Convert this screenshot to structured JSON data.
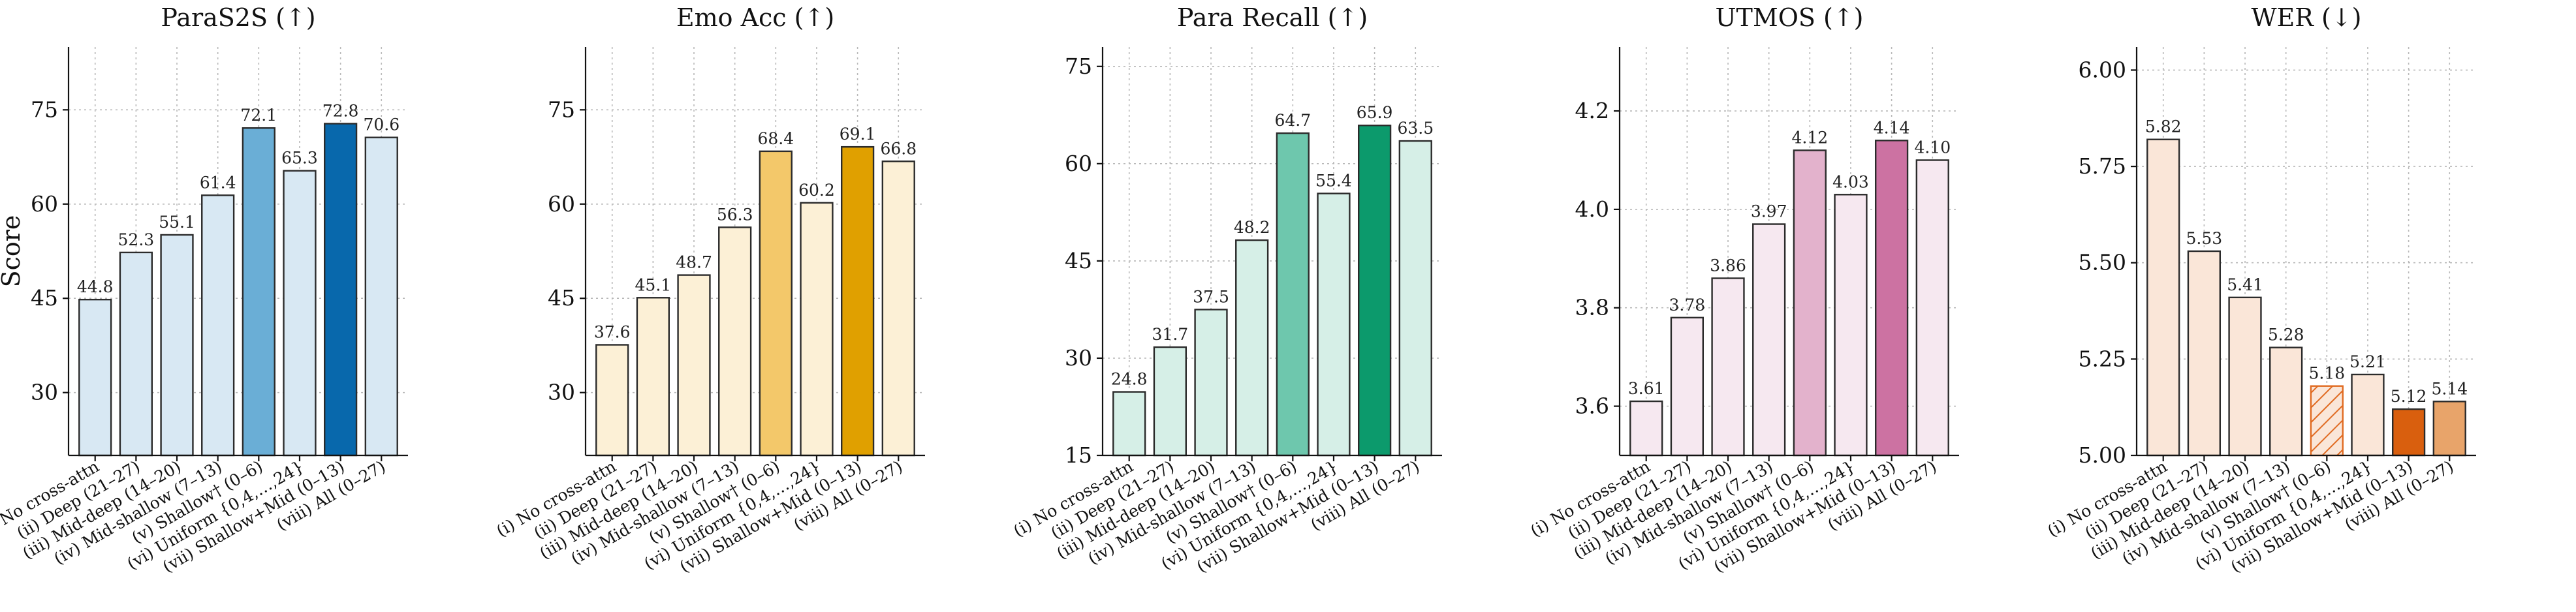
{
  "y_axis_label": "Score",
  "categories": [
    "(i) No cross-attn",
    "(ii) Deep (21–27)",
    "(iii) Mid-deep (14–20)",
    "(iv) Mid-shallow (7–13)",
    "(v) Shallow† (0–6)",
    "(vi) Uniform {0,4,…,24}",
    "(vii) Shallow+Mid (0–13)",
    "(viii) All (0–27)"
  ],
  "colors": {
    "blue_light": "#d8e8f3",
    "blue_mid": "#6aaed6",
    "blue_dark": "#0868ac",
    "gold_light": "#fcf0d6",
    "gold_mid": "#f3c86a",
    "gold_dark": "#e0a000",
    "green_light": "#d6efe7",
    "green_mid": "#6ec7ad",
    "green_dark": "#0c9a6c",
    "pink_light": "#f6e8f0",
    "pink_mid": "#e3b2cc",
    "pink_dark": "#cc72a2",
    "peach_light": "#fae6d8",
    "orange_dark": "#d95f0e",
    "orange_mid": "#e8a46a",
    "orange_hatch": "#e06a20"
  },
  "chart_data": [
    {
      "type": "bar",
      "title": "ParaS2S (↑)",
      "ylabel": "Score",
      "ylim": [
        20,
        85
      ],
      "yticks": [
        30,
        45,
        60,
        75
      ],
      "tick_labels": [
        "30",
        "45",
        "60",
        "75"
      ],
      "values": [
        44.8,
        52.3,
        55.1,
        61.4,
        72.1,
        65.3,
        72.8,
        70.6
      ],
      "value_labels": [
        "44.8",
        "52.3",
        "55.1",
        "61.4",
        "72.1",
        "65.3",
        "72.8",
        "70.6"
      ],
      "bar_colors": [
        "#d8e8f3",
        "#d8e8f3",
        "#d8e8f3",
        "#d8e8f3",
        "#6aaed6",
        "#d8e8f3",
        "#0868ac",
        "#d8e8f3"
      ],
      "hatched": [
        false,
        false,
        false,
        false,
        false,
        false,
        false,
        false
      ]
    },
    {
      "type": "bar",
      "title": "Emo Acc (↑)",
      "ylim": [
        20,
        85
      ],
      "yticks": [
        30,
        45,
        60,
        75
      ],
      "tick_labels": [
        "30",
        "45",
        "60",
        "75"
      ],
      "values": [
        37.6,
        45.1,
        48.7,
        56.3,
        68.4,
        60.2,
        69.1,
        66.8
      ],
      "value_labels": [
        "37.6",
        "45.1",
        "48.7",
        "56.3",
        "68.4",
        "60.2",
        "69.1",
        "66.8"
      ],
      "bar_colors": [
        "#fcf0d6",
        "#fcf0d6",
        "#fcf0d6",
        "#fcf0d6",
        "#f3c86a",
        "#fcf0d6",
        "#e0a000",
        "#fcf0d6"
      ],
      "hatched": [
        false,
        false,
        false,
        false,
        false,
        false,
        false,
        false
      ]
    },
    {
      "type": "bar",
      "title": "Para Recall (↑)",
      "ylim": [
        15,
        78
      ],
      "yticks": [
        15,
        30,
        45,
        60,
        75
      ],
      "tick_labels": [
        "15",
        "30",
        "45",
        "60",
        "75"
      ],
      "values": [
        24.8,
        31.7,
        37.5,
        48.2,
        64.7,
        55.4,
        65.9,
        63.5
      ],
      "value_labels": [
        "24.8",
        "31.7",
        "37.5",
        "48.2",
        "64.7",
        "55.4",
        "65.9",
        "63.5"
      ],
      "bar_colors": [
        "#d6efe7",
        "#d6efe7",
        "#d6efe7",
        "#d6efe7",
        "#6ec7ad",
        "#d6efe7",
        "#0c9a6c",
        "#d6efe7"
      ],
      "hatched": [
        false,
        false,
        false,
        false,
        false,
        false,
        false,
        false
      ]
    },
    {
      "type": "bar",
      "title": "UTMOS (↑)",
      "ylim": [
        3.5,
        4.33
      ],
      "yticks": [
        3.6,
        3.8,
        4.0,
        4.2
      ],
      "tick_labels": [
        "3.6",
        "3.8",
        "4.0",
        "4.2"
      ],
      "values": [
        3.61,
        3.78,
        3.86,
        3.97,
        4.12,
        4.03,
        4.14,
        4.1
      ],
      "value_labels": [
        "3.61",
        "3.78",
        "3.86",
        "3.97",
        "4.12",
        "4.03",
        "4.14",
        "4.10"
      ],
      "bar_colors": [
        "#f6e8f0",
        "#f6e8f0",
        "#f6e8f0",
        "#f6e8f0",
        "#e3b2cc",
        "#f6e8f0",
        "#cc72a2",
        "#f6e8f0"
      ],
      "hatched": [
        false,
        false,
        false,
        false,
        false,
        false,
        false,
        false
      ]
    },
    {
      "type": "bar",
      "title": "WER (↓)",
      "ylim": [
        5.0,
        6.06
      ],
      "yticks": [
        5.0,
        5.25,
        5.5,
        5.75,
        6.0
      ],
      "tick_labels": [
        "5.00",
        "5.25",
        "5.50",
        "5.75",
        "6.00"
      ],
      "values": [
        5.82,
        5.53,
        5.41,
        5.28,
        5.18,
        5.21,
        5.12,
        5.14
      ],
      "value_labels": [
        "5.82",
        "5.53",
        "5.41",
        "5.28",
        "5.18",
        "5.21",
        "5.12",
        "5.14"
      ],
      "bar_colors": [
        "#fae6d8",
        "#fae6d8",
        "#fae6d8",
        "#fae6d8",
        "#fae6d8",
        "#fae6d8",
        "#d95f0e",
        "#e8a46a"
      ],
      "hatched": [
        false,
        false,
        false,
        false,
        true,
        false,
        false,
        false
      ]
    }
  ]
}
